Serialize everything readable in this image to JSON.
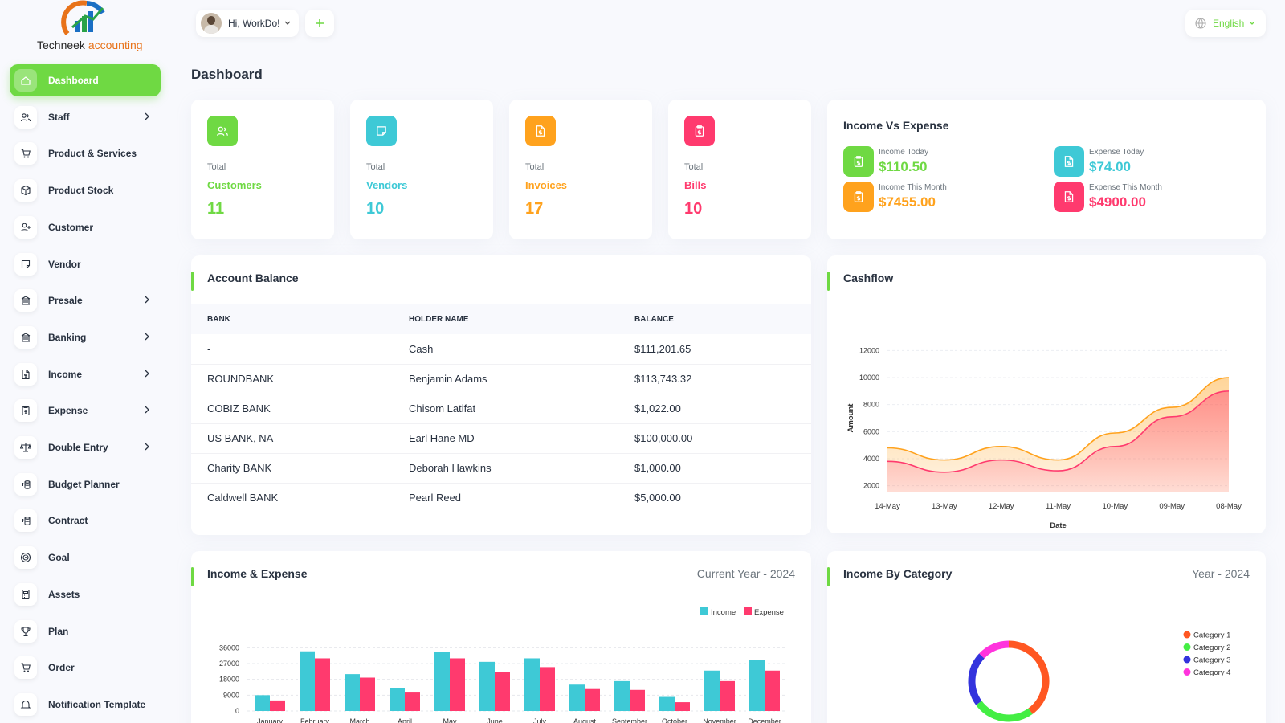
{
  "brand": {
    "name_part1": "Techneek",
    "name_part2": "accounting"
  },
  "header": {
    "greeting": "Hi, WorkDo!",
    "language": "English"
  },
  "page_title": "Dashboard",
  "sidebar": {
    "items": [
      {
        "label": "Dashboard",
        "icon": "home-icon",
        "active": true,
        "chevron": false
      },
      {
        "label": "Staff",
        "icon": "users-icon",
        "chevron": true
      },
      {
        "label": "Product & Services",
        "icon": "cart-icon",
        "chevron": false
      },
      {
        "label": "Product Stock",
        "icon": "box-icon",
        "chevron": false
      },
      {
        "label": "Customer",
        "icon": "user-plus-icon",
        "chevron": false
      },
      {
        "label": "Vendor",
        "icon": "note-icon",
        "chevron": false
      },
      {
        "label": "Presale",
        "icon": "building-icon",
        "chevron": true
      },
      {
        "label": "Banking",
        "icon": "bank-icon",
        "chevron": true
      },
      {
        "label": "Income",
        "icon": "file-dollar-icon",
        "chevron": true
      },
      {
        "label": "Expense",
        "icon": "clipboard-icon",
        "chevron": true
      },
      {
        "label": "Double Entry",
        "icon": "scale-icon",
        "chevron": true
      },
      {
        "label": "Budget Planner",
        "icon": "coins-icon",
        "chevron": false
      },
      {
        "label": "Contract",
        "icon": "contract-icon",
        "chevron": false
      },
      {
        "label": "Goal",
        "icon": "target-icon",
        "chevron": false
      },
      {
        "label": "Assets",
        "icon": "calculator-icon",
        "chevron": false
      },
      {
        "label": "Plan",
        "icon": "trophy-icon",
        "chevron": false
      },
      {
        "label": "Order",
        "icon": "cart-check-icon",
        "chevron": false
      },
      {
        "label": "Notification Template",
        "icon": "bell-icon",
        "chevron": false
      }
    ]
  },
  "stats": [
    {
      "label": "Total",
      "name": "Customers",
      "value": "11",
      "color": "#6fd943"
    },
    {
      "label": "Total",
      "name": "Vendors",
      "value": "10",
      "color": "#3ec9d6"
    },
    {
      "label": "Total",
      "name": "Invoices",
      "value": "17",
      "color": "#ffa21d"
    },
    {
      "label": "Total",
      "name": "Bills",
      "value": "10",
      "color": "#ff3a6e"
    }
  ],
  "income_vs_expense": {
    "title": "Income Vs Expense",
    "items": [
      {
        "label": "Income Today",
        "value": "$110.50",
        "color": "#6fd943"
      },
      {
        "label": "Expense Today",
        "value": "$74.00",
        "color": "#3ec9d6"
      },
      {
        "label": "Income This Month",
        "value": "$7455.00",
        "color": "#ffa21d"
      },
      {
        "label": "Expense This Month",
        "value": "$4900.00",
        "color": "#ff3a6e"
      }
    ]
  },
  "account_balance": {
    "title": "Account Balance",
    "columns": [
      "BANK",
      "HOLDER NAME",
      "BALANCE"
    ],
    "rows": [
      [
        "-",
        "Cash",
        "$111,201.65"
      ],
      [
        "ROUNDBANK",
        "Benjamin Adams",
        "$113,743.32"
      ],
      [
        "COBIZ BANK",
        "Chisom Latifat",
        "$1,022.00"
      ],
      [
        "US BANK, NA",
        "Earl Hane MD",
        "$100,000.00"
      ],
      [
        "Charity BANK",
        "Deborah Hawkins",
        "$1,000.00"
      ],
      [
        "Caldwell BANK",
        "Pearl Reed",
        "$5,000.00"
      ]
    ]
  },
  "cashflow_title": "Cashflow",
  "income_expense_title": "Income & Expense",
  "income_expense_sub": "Current Year - 2024",
  "income_category_title": "Income By Category",
  "income_category_sub": "Year - 2024",
  "chart_data": [
    {
      "type": "area",
      "xlabel": "Date",
      "ylabel": "Amount",
      "x": [
        "14-May",
        "13-May",
        "12-May",
        "11-May",
        "10-May",
        "09-May",
        "08-May"
      ],
      "yticks": [
        2000,
        4000,
        6000,
        8000,
        10000,
        12000
      ],
      "ylim": [
        1500,
        12500
      ],
      "series": [
        {
          "values": [
            4800,
            3900,
            4900,
            3900,
            5900,
            7800,
            10000
          ],
          "color": "#ffa21d"
        },
        {
          "values": [
            3800,
            3000,
            3900,
            3100,
            4900,
            7100,
            9000
          ],
          "color": "#ff3a6e"
        }
      ]
    },
    {
      "type": "bar",
      "categories": [
        "January",
        "February",
        "March",
        "April",
        "May",
        "June",
        "July",
        "August",
        "September",
        "October",
        "November",
        "December"
      ],
      "yticks": [
        0,
        9000,
        18000,
        27000,
        36000
      ],
      "ylim": [
        0,
        38000
      ],
      "legend": "top-right",
      "series": [
        {
          "name": "Income",
          "values": [
            9000,
            34000,
            21000,
            13000,
            33500,
            28000,
            30000,
            15000,
            17000,
            8000,
            23000,
            29000
          ],
          "color": "#3ec9d6"
        },
        {
          "name": "Expense",
          "values": [
            6000,
            30000,
            19000,
            10500,
            30000,
            22000,
            25000,
            12500,
            12000,
            5000,
            17000,
            23000
          ],
          "color": "#ff3a6e"
        }
      ]
    },
    {
      "type": "pie",
      "donut": true,
      "legend": "right",
      "categories": [
        "Category 1",
        "Category 2",
        "Category 3",
        "Category 4"
      ],
      "values": [
        40,
        25,
        22,
        13
      ],
      "colors": [
        "#ff5722",
        "#44ee44",
        "#3333dd",
        "#ff33dd"
      ]
    }
  ]
}
